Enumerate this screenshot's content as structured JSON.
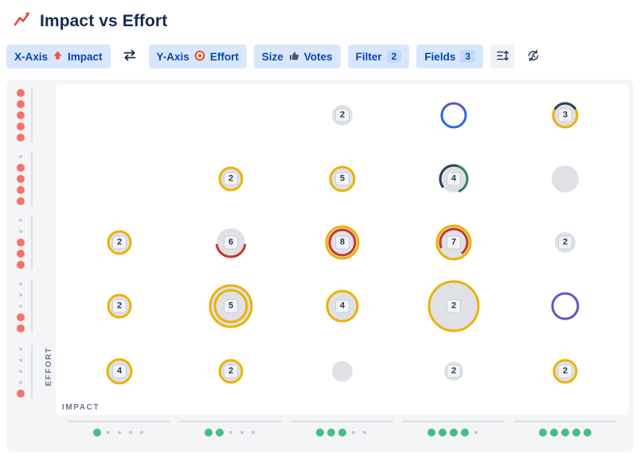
{
  "header": {
    "title": "Impact vs Effort"
  },
  "toolbar": {
    "x_axis": {
      "label": "X-Axis",
      "value": "Impact"
    },
    "y_axis": {
      "label": "Y-Axis",
      "value": "Effort"
    },
    "size": {
      "label": "Size",
      "value": "Votes"
    },
    "filter": {
      "label": "Filter",
      "count": "2"
    },
    "fields": {
      "label": "Fields",
      "count": "3"
    }
  },
  "axes": {
    "x_label": "IMPACT",
    "y_label": "EFFORT"
  },
  "colors": {
    "yellow": "#ecb203",
    "red": "#c9372c",
    "navy": "#2c3e5d",
    "green": "#33805d",
    "blue": "#2d6ae2",
    "purple": "#6554c0",
    "bubble_fill": "#dfe1e6",
    "effort_dot": "#f87168",
    "impact_dot": "#45bd84",
    "placeholder_dot": "#c6ccd4"
  },
  "chart_data": {
    "type": "scatter",
    "title": "Impact vs Effort",
    "xlabel": "IMPACT",
    "ylabel": "EFFORT",
    "x_axis_field": "Impact",
    "y_axis_field": "Effort",
    "size_field": "Votes",
    "x_levels": [
      1,
      2,
      3,
      4,
      5
    ],
    "y_levels": [
      5,
      4,
      3,
      2,
      1
    ],
    "bubbles": [
      {
        "impact": 3,
        "effort": 5,
        "count": "2",
        "d": 26,
        "rings": []
      },
      {
        "impact": 4,
        "effort": 5,
        "count": null,
        "d": 30,
        "hollow": true,
        "rings": [
          {
            "color": "blue",
            "start": 50,
            "end": 310
          },
          {
            "color": "purple",
            "start": -50,
            "end": 50
          }
        ]
      },
      {
        "impact": 5,
        "effort": 5,
        "count": "3",
        "d": 30,
        "rings": [
          {
            "color": "yellow",
            "start": 0,
            "end": 360
          },
          {
            "color": "navy",
            "start": -55,
            "end": 55
          }
        ]
      },
      {
        "impact": 2,
        "effort": 4,
        "count": "2",
        "d": 28,
        "rings": [
          {
            "color": "yellow",
            "start": 0,
            "end": 360
          }
        ]
      },
      {
        "impact": 3,
        "effort": 4,
        "count": "5",
        "d": 30,
        "rings": [
          {
            "color": "yellow",
            "start": 0,
            "end": 360
          }
        ]
      },
      {
        "impact": 4,
        "effort": 4,
        "count": "4",
        "d": 34,
        "rings": [
          {
            "color": "navy",
            "start": -125,
            "end": 20
          },
          {
            "color": "green",
            "start": 20,
            "end": 155
          }
        ]
      },
      {
        "impact": 5,
        "effort": 4,
        "count": null,
        "d": 34,
        "rings": []
      },
      {
        "impact": 1,
        "effort": 3,
        "count": "2",
        "d": 28,
        "rings": [
          {
            "color": "yellow",
            "start": 0,
            "end": 360
          }
        ]
      },
      {
        "impact": 2,
        "effort": 3,
        "count": "6",
        "d": 36,
        "rings": [
          {
            "color": "red",
            "start": 100,
            "end": 260
          }
        ]
      },
      {
        "impact": 3,
        "effort": 3,
        "count": "8",
        "d": 40,
        "rings": [
          {
            "color": "yellow",
            "start": 0,
            "end": 360
          },
          {
            "color": "red",
            "start": 0,
            "end": 360,
            "inset": 4
          }
        ]
      },
      {
        "impact": 4,
        "effort": 3,
        "count": "7",
        "d": 42,
        "rings": [
          {
            "color": "yellow",
            "start": 0,
            "end": 360
          },
          {
            "color": "red",
            "start": -110,
            "end": 140,
            "inset": 4
          }
        ]
      },
      {
        "impact": 5,
        "effort": 3,
        "count": "2",
        "d": 26,
        "rings": []
      },
      {
        "impact": 1,
        "effort": 2,
        "count": "2",
        "d": 28,
        "rings": [
          {
            "color": "yellow",
            "start": 0,
            "end": 360
          }
        ]
      },
      {
        "impact": 2,
        "effort": 2,
        "count": "5",
        "d": 52,
        "rings": [
          {
            "color": "yellow",
            "start": 0,
            "end": 360
          },
          {
            "color": "yellow",
            "start": 0,
            "end": 360,
            "inset": 6
          }
        ]
      },
      {
        "impact": 3,
        "effort": 2,
        "count": "4",
        "d": 38,
        "rings": [
          {
            "color": "yellow",
            "start": 0,
            "end": 360
          }
        ]
      },
      {
        "impact": 4,
        "effort": 2,
        "count": "2",
        "d": 62,
        "rings": [
          {
            "color": "yellow",
            "start": 0,
            "end": 360
          }
        ]
      },
      {
        "impact": 5,
        "effort": 2,
        "count": null,
        "d": 32,
        "hollow": true,
        "rings": [
          {
            "color": "purple",
            "start": 0,
            "end": 360
          }
        ]
      },
      {
        "impact": 1,
        "effort": 1,
        "count": "4",
        "d": 30,
        "rings": [
          {
            "color": "yellow",
            "start": 0,
            "end": 360
          }
        ]
      },
      {
        "impact": 2,
        "effort": 1,
        "count": "2",
        "d": 28,
        "rings": [
          {
            "color": "yellow",
            "start": 0,
            "end": 360
          }
        ]
      },
      {
        "impact": 3,
        "effort": 1,
        "count": null,
        "d": 26,
        "rings": []
      },
      {
        "impact": 4,
        "effort": 1,
        "count": "2",
        "d": 24,
        "rings": []
      },
      {
        "impact": 5,
        "effort": 1,
        "count": "2",
        "d": 28,
        "rings": [
          {
            "color": "yellow",
            "start": 0,
            "end": 360
          }
        ]
      }
    ]
  }
}
